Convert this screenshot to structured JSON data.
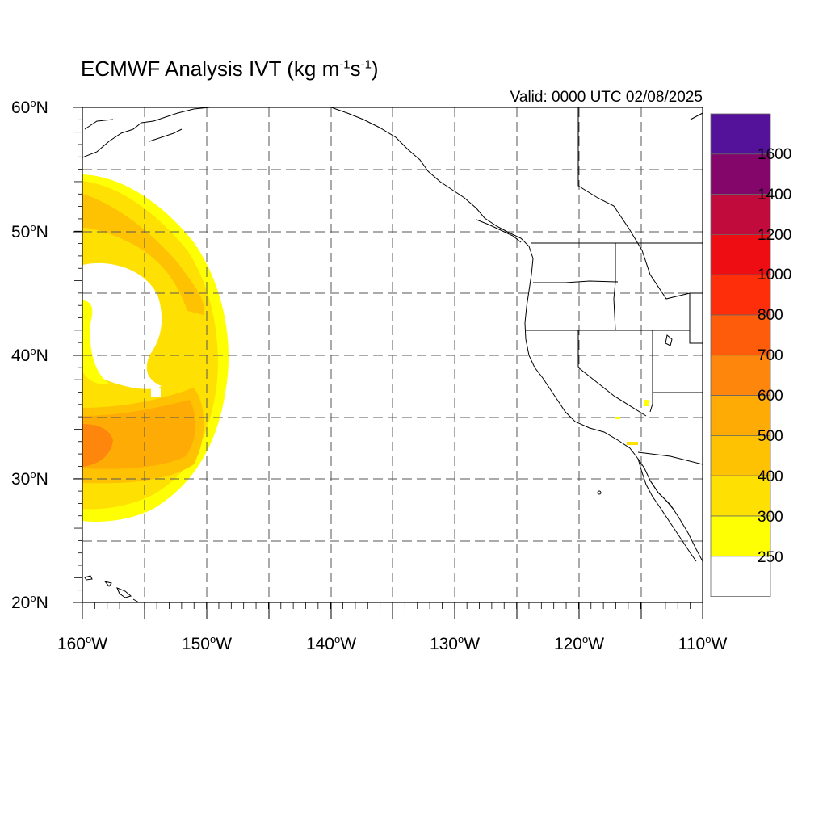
{
  "title": {
    "main": "ECMWF Analysis IVT (kg m",
    "exp1": "-1",
    "mid": "s",
    "exp2": "-1",
    "end": ")"
  },
  "valid": "Valid: 0000 UTC 02/08/2025",
  "lat_labels": [
    {
      "deg": "60",
      "hemi": "N"
    },
    {
      "deg": "50",
      "hemi": "N"
    },
    {
      "deg": "40",
      "hemi": "N"
    },
    {
      "deg": "30",
      "hemi": "N"
    },
    {
      "deg": "20",
      "hemi": "N"
    }
  ],
  "lon_labels": [
    {
      "deg": "160",
      "hemi": "W"
    },
    {
      "deg": "150",
      "hemi": "W"
    },
    {
      "deg": "140",
      "hemi": "W"
    },
    {
      "deg": "130",
      "hemi": "W"
    },
    {
      "deg": "120",
      "hemi": "W"
    },
    {
      "deg": "110",
      "hemi": "W"
    }
  ],
  "colorbar": {
    "labels": [
      "1600",
      "1400",
      "1200",
      "1000",
      "800",
      "700",
      "600",
      "500",
      "400",
      "300",
      "250"
    ],
    "colors_top_to_bottom": [
      "#54119a",
      "#84066b",
      "#c20b3d",
      "#ed0d13",
      "#ff2e0a",
      "#fe5b0b",
      "#fe860d",
      "#feab06",
      "#fec203",
      "#fee102",
      "#ffff04",
      "#ffffff"
    ]
  },
  "colors": {
    "ivt_250_300": "#ffff04",
    "ivt_300_400": "#fee102",
    "ivt_400_500": "#fec203",
    "ivt_500_600": "#feab06",
    "ivt_600_700": "#fe860d"
  }
}
